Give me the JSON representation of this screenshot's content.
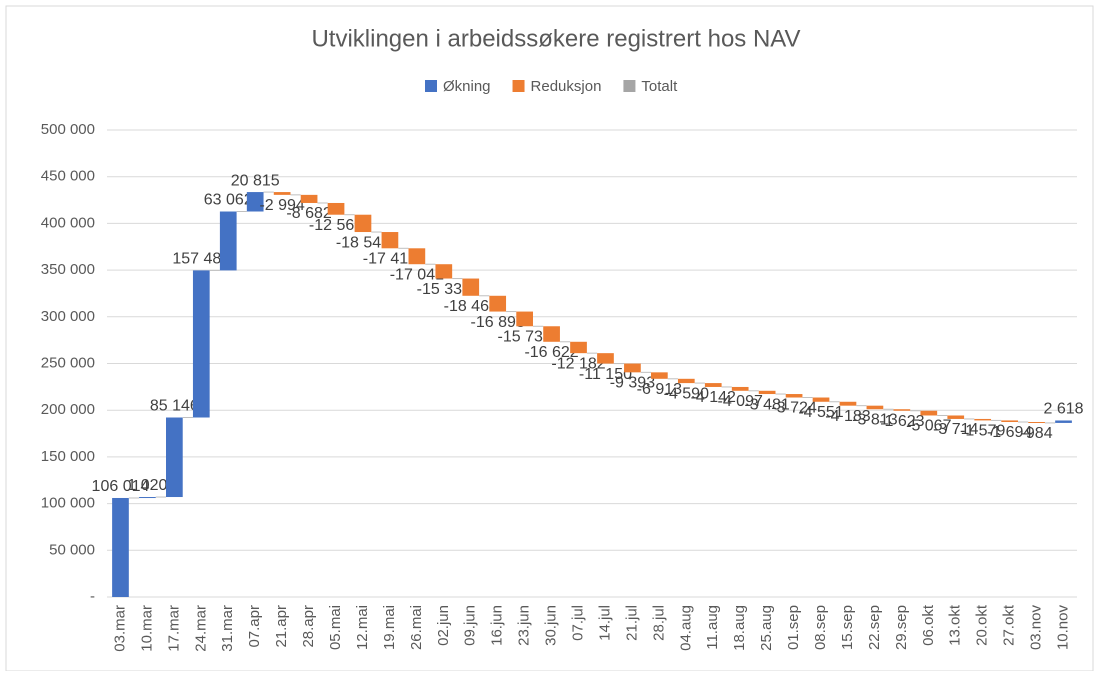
{
  "chart_data": {
    "type": "waterfall",
    "title": "Utviklingen i arbeidssøkere registrert hos NAV",
    "legend": [
      {
        "name": "Økning",
        "color": "#4472c4"
      },
      {
        "name": "Reduksjon",
        "color": "#ed7d31"
      },
      {
        "name": "Totalt",
        "color": "#a5a5a5"
      }
    ],
    "categories": [
      "03.mar",
      "10.mar",
      "17.mar",
      "24.mar",
      "31.mar",
      "07.apr",
      "21.apr",
      "28.apr",
      "05.mai",
      "12.mai",
      "19.mai",
      "26.mai",
      "02.jun",
      "09.jun",
      "16.jun",
      "23.jun",
      "30.jun",
      "07.jul",
      "14.jul",
      "21.jul",
      "28.jul",
      "04.aug",
      "11.aug",
      "18.aug",
      "25.aug",
      "01.sep",
      "08.sep",
      "15.sep",
      "22.sep",
      "29.sep",
      "06.okt",
      "13.okt",
      "20.okt",
      "27.okt",
      "03.nov",
      "10.nov"
    ],
    "values": [
      106014,
      1020,
      85146,
      157488,
      63062,
      20815,
      -2994,
      -8682,
      -12563,
      -18548,
      -17419,
      -17041,
      -15333,
      -18464,
      -16893,
      -15732,
      -16622,
      -12182,
      -11150,
      -9393,
      -6913,
      -4590,
      -4142,
      -4097,
      -3481,
      -3724,
      -4551,
      -4183,
      -3813,
      -1623,
      -5067,
      -3714,
      -1579,
      -1694,
      -984,
      2618
    ],
    "value_labels": [
      "106 014",
      "1 020",
      "85 146",
      "157 488",
      "63 062",
      "20 815",
      "-2 994",
      "-8 682",
      "-12 563",
      "-18 548",
      "-17 419",
      "-17 041",
      "-15 333",
      "-18 464",
      "-16 893",
      "-15 732",
      "-16 622",
      "-12 182",
      "-11 150",
      "-9 393",
      "-6 913",
      "-4 590",
      "-4 142",
      "-4 097",
      "-3 481",
      "-3 724",
      "-4 551",
      "-4 183",
      "-3 813",
      "-1 623",
      "-5 067",
      "-3 714",
      "-1 579",
      "-1 694",
      "-984",
      "2 618"
    ],
    "ylim": [
      0,
      500000
    ],
    "yticks": [
      {
        "value": 0,
        "label": "-"
      },
      {
        "value": 50000,
        "label": "50 000"
      },
      {
        "value": 100000,
        "label": "100 000"
      },
      {
        "value": 150000,
        "label": "150 000"
      },
      {
        "value": 200000,
        "label": "200 000"
      },
      {
        "value": 250000,
        "label": "250 000"
      },
      {
        "value": 300000,
        "label": "300 000"
      },
      {
        "value": 350000,
        "label": "350 000"
      },
      {
        "value": 400000,
        "label": "400 000"
      },
      {
        "value": 450000,
        "label": "450 000"
      },
      {
        "value": 500000,
        "label": "500 000"
      }
    ],
    "grid": true
  }
}
